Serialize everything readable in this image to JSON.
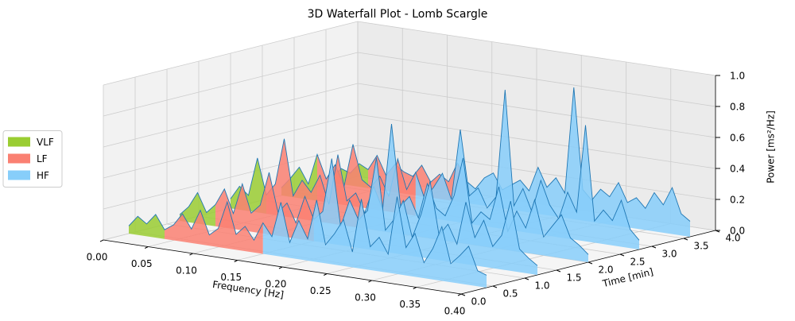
{
  "chart_data": {
    "type": "waterfall3d",
    "title": "3D Waterfall Plot - Lomb Scargle",
    "xlabel": "Frequency [Hz]",
    "ylabel": "Time [min]",
    "zlabel": "Power [ms²/Hz]",
    "legend": "center left",
    "line_color": "#1f77b4",
    "bands": [
      {
        "name": "VLF",
        "color": "#9acd32",
        "range": [
          0,
          0.04
        ]
      },
      {
        "name": "LF",
        "color": "#fa8072",
        "range": [
          0.04,
          0.15
        ]
      },
      {
        "name": "HF",
        "color": "#87cefa",
        "range": [
          0.15,
          0.4
        ]
      }
    ],
    "x": [
      0,
      0.01,
      0.02,
      0.03,
      0.04,
      0.05,
      0.06,
      0.07,
      0.08,
      0.09,
      0.1,
      0.11,
      0.12,
      0.13,
      0.14,
      0.15,
      0.16,
      0.17,
      0.18,
      0.19,
      0.2,
      0.21,
      0.22,
      0.23,
      0.24,
      0.25,
      0.26,
      0.27,
      0.28,
      0.29,
      0.3,
      0.31,
      0.32,
      0.33,
      0.34,
      0.35,
      0.36,
      0.37,
      0.38,
      0.39,
      0.4
    ],
    "slices": [
      {
        "time": 0.4,
        "values": [
          0.05,
          0.12,
          0.08,
          0.15,
          0.06,
          0.1,
          0.18,
          0.09,
          0.22,
          0.07,
          0.12,
          0.3,
          0.1,
          0.16,
          0.08,
          0.2,
          0.12,
          0.35,
          0.1,
          0.25,
          0.14,
          0.4,
          0.12,
          0.2,
          0.3,
          0.1,
          0.45,
          0.15,
          0.22,
          0.12,
          0.5,
          0.18,
          0.28,
          0.1,
          0.2,
          0.35,
          0.12,
          0.18,
          0.25,
          0.1,
          0.08
        ]
      },
      {
        "time": 1.2,
        "values": [
          0.04,
          0.1,
          0.2,
          0.08,
          0.14,
          0.25,
          0.1,
          0.3,
          0.12,
          0.18,
          0.4,
          0.15,
          0.22,
          0.1,
          0.28,
          0.14,
          0.2,
          0.55,
          0.12,
          0.3,
          0.18,
          0.25,
          0.6,
          0.14,
          0.22,
          0.35,
          0.12,
          0.28,
          0.5,
          0.16,
          0.24,
          0.12,
          0.4,
          0.18,
          0.3,
          0.14,
          0.22,
          0.45,
          0.15,
          0.1,
          0.06
        ]
      },
      {
        "time": 2.0,
        "values": [
          0.06,
          0.15,
          0.1,
          0.35,
          0.12,
          0.2,
          0.5,
          0.14,
          0.25,
          0.18,
          0.3,
          0.12,
          0.45,
          0.16,
          0.22,
          0.1,
          0.28,
          0.14,
          0.7,
          0.18,
          0.25,
          0.12,
          0.35,
          0.2,
          0.16,
          0.3,
          0.55,
          0.14,
          0.22,
          0.18,
          0.4,
          0.12,
          0.26,
          0.16,
          0.35,
          0.12,
          0.2,
          0.28,
          0.14,
          0.1,
          0.05
        ]
      },
      {
        "time": 2.8,
        "values": [
          0.05,
          0.12,
          0.2,
          0.1,
          0.3,
          0.15,
          0.25,
          0.12,
          0.4,
          0.18,
          0.14,
          0.22,
          0.1,
          0.35,
          0.16,
          0.28,
          0.12,
          0.2,
          0.3,
          0.14,
          0.6,
          0.18,
          0.24,
          0.12,
          0.2,
          0.9,
          0.16,
          0.28,
          0.14,
          0.35,
          0.2,
          0.12,
          0.3,
          0.18,
          0.75,
          0.14,
          0.22,
          0.16,
          0.3,
          0.12,
          0.06
        ]
      },
      {
        "time": 3.6,
        "values": [
          0.04,
          0.1,
          0.08,
          0.15,
          0.12,
          0.22,
          0.1,
          0.18,
          0.14,
          0.12,
          0.2,
          0.1,
          0.16,
          0.12,
          0.25,
          0.14,
          0.1,
          0.18,
          0.22,
          0.12,
          0.16,
          0.2,
          0.14,
          0.3,
          0.18,
          0.25,
          0.16,
          0.85,
          0.2,
          0.14,
          0.22,
          0.18,
          0.28,
          0.16,
          0.2,
          0.14,
          0.25,
          0.18,
          0.3,
          0.14,
          0.1
        ]
      }
    ],
    "xlim": [
      0,
      0.4
    ],
    "ylim": [
      0,
      4
    ],
    "zlim": [
      0,
      1
    ],
    "xticks": [
      {
        "value": 0,
        "label": "0.00"
      },
      0.05,
      {
        "value": 0.1,
        "label": "0.10"
      },
      0.15,
      {
        "value": 0.2,
        "label": "0.20"
      },
      0.25,
      {
        "value": 0.3,
        "label": "0.30"
      },
      0.35,
      {
        "value": 0.4,
        "label": "0.40"
      }
    ],
    "yticks": [
      {
        "value": 0,
        "label": "0.0"
      },
      0.5,
      {
        "value": 1,
        "label": "1.0"
      },
      1.5,
      {
        "value": 2,
        "label": "2.0"
      },
      2.5,
      {
        "value": 3,
        "label": "3.0"
      },
      3.5,
      {
        "value": 4,
        "label": "4.0"
      }
    ],
    "zticks": [
      {
        "value": 0,
        "label": "0.0"
      },
      0.2,
      0.4,
      0.6,
      0.8,
      {
        "value": 1,
        "label": "1.0"
      }
    ],
    "grid": true
  }
}
